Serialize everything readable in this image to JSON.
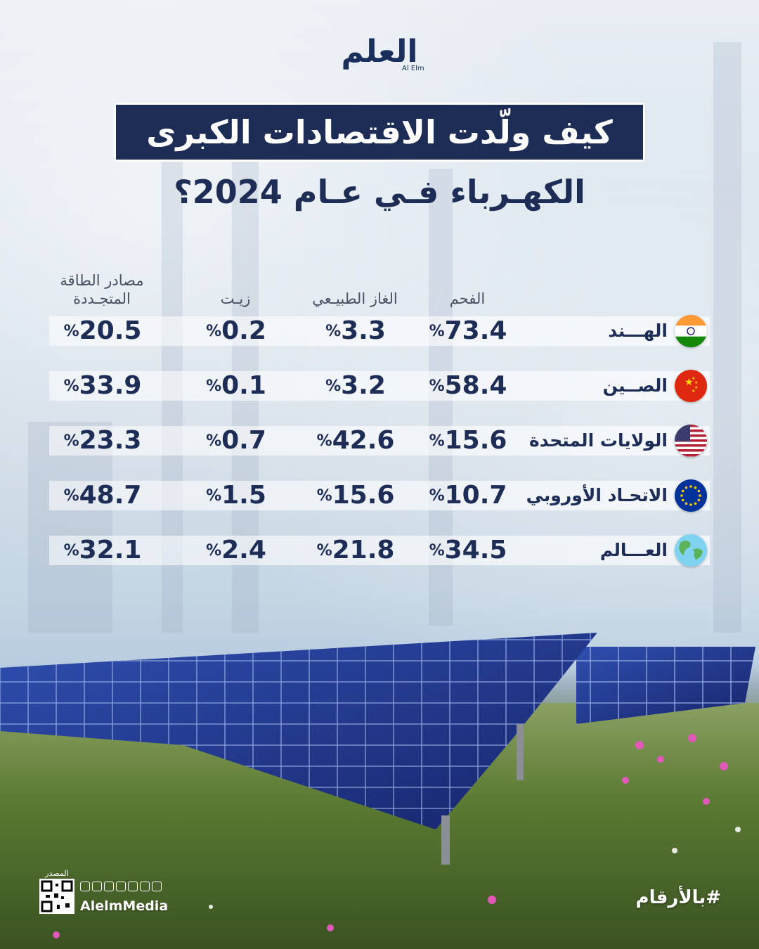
{
  "brand": {
    "logo_text": "العلم",
    "logo_sub": "Al Elm"
  },
  "title": "كيف ولّدت الاقتصادات الكبرى",
  "subtitle": "الكهـرباء فـي عـام 2024؟",
  "columns": [
    "الفحم",
    "الغاز الطبيـعي",
    "زيـت",
    "مصادر الطاقة المتجـددة"
  ],
  "percent_symbol": "%",
  "rows": [
    {
      "country": "الهـــند",
      "flag": "india-flag",
      "values": [
        "73.4",
        "3.3",
        "0.2",
        "20.5"
      ]
    },
    {
      "country": "الصــين",
      "flag": "china-flag",
      "values": [
        "58.4",
        "3.2",
        "0.1",
        "33.9"
      ]
    },
    {
      "country": "الولايات المتحدة",
      "flag": "usa-flag",
      "values": [
        "15.6",
        "42.6",
        "0.7",
        "23.3"
      ]
    },
    {
      "country": "الاتحـاد الأوروبي",
      "flag": "eu-flag",
      "values": [
        "10.7",
        "15.6",
        "1.5",
        "48.7"
      ]
    },
    {
      "country": "العـــالم",
      "flag": "globe-icon",
      "values": [
        "34.5",
        "21.8",
        "2.4",
        "32.1"
      ]
    }
  ],
  "footer": {
    "hashtag": "#بالأرقام",
    "source_label": "المصدر",
    "handle": "AlelmMedia",
    "social_icons": [
      "telegram-icon",
      "x-icon",
      "youtube-icon",
      "linkedin-icon",
      "snapchat-icon",
      "instagram-icon",
      "facebook-icon"
    ]
  },
  "colors": {
    "navy": "#1e2d55",
    "title_bg": "#1e2d55",
    "header_text": "#4a5061"
  }
}
